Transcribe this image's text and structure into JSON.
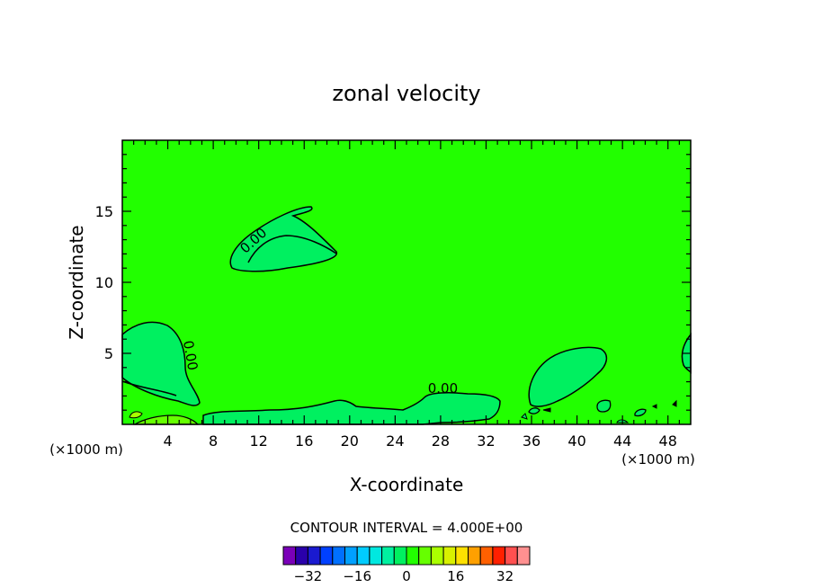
{
  "chart_data": {
    "type": "heatmap",
    "title": "zonal velocity",
    "xlabel": "X-coordinate",
    "ylabel": "Z-coordinate",
    "x_unit_left": "(×1000 m)",
    "x_unit_right": "(×1000 m)",
    "xlim": [
      0,
      50
    ],
    "ylim": [
      0,
      20
    ],
    "x_ticks": [
      4,
      8,
      12,
      16,
      20,
      24,
      28,
      32,
      36,
      40,
      44,
      48
    ],
    "y_ticks": [
      5,
      10,
      15
    ],
    "background_level_color": "#22ff00",
    "contour_labels": [
      {
        "text": "0.00",
        "x": 11.8,
        "z": 12.7,
        "rotate": -42
      },
      {
        "text": "0.00",
        "x": 5.6,
        "z": 4.8,
        "rotate": 80
      },
      {
        "text": "0.00",
        "x": 28.2,
        "z": 2.2,
        "rotate": 0
      }
    ],
    "contour_interval_text": "CONTOUR INTERVAL =  4.000E+00",
    "colorbar": {
      "levels": [
        -36,
        -32,
        -28,
        -24,
        -20,
        -16,
        -12,
        -8,
        -4,
        0,
        4,
        8,
        12,
        16,
        20,
        24,
        28,
        32,
        36
      ],
      "colors": [
        "#7a00b8",
        "#2a00aa",
        "#1a1ad0",
        "#0040ff",
        "#0070ff",
        "#00a0ff",
        "#00ccff",
        "#00e8e0",
        "#00f0a0",
        "#00f060",
        "#22ff00",
        "#66ff00",
        "#aaff00",
        "#d8f000",
        "#ffe000",
        "#ffa000",
        "#ff6000",
        "#ff2000",
        "#ff5050",
        "#ff9090"
      ],
      "tick_labels": [
        "−32",
        "−16",
        "0",
        "16",
        "32"
      ],
      "tick_values": [
        -32,
        -16,
        0,
        16,
        32
      ]
    }
  }
}
